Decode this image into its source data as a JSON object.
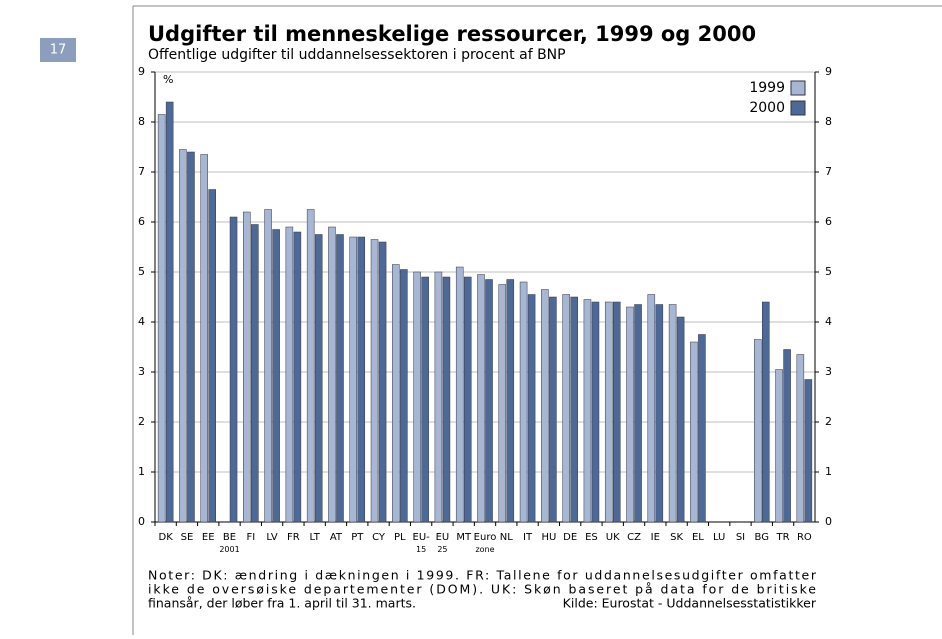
{
  "page_number": "17",
  "chart_data": {
    "type": "bar",
    "title": "Udgifter til menneskelige ressourcer, 1999 og 2000",
    "subtitle": "Offentlige udgifter til uddannelsessektoren i procent af BNP",
    "y_unit": "%",
    "categories": [
      "DK",
      "SE",
      "EE",
      "BE 2001",
      "FI",
      "LV",
      "FR",
      "LT",
      "AT",
      "PT",
      "CY",
      "PL",
      "EU- 15",
      "EU 25",
      "MT",
      "Euro zone",
      "NL",
      "IT",
      "HU",
      "DE",
      "ES",
      "UK",
      "CZ",
      "IE",
      "SK",
      "EL",
      "LU",
      "SI",
      "BG",
      "TR",
      "RO"
    ],
    "series": [
      {
        "name": "1999",
        "color": "#a7b7d3",
        "values": [
          8.15,
          7.45,
          7.35,
          null,
          6.2,
          6.25,
          5.9,
          6.25,
          5.9,
          5.7,
          5.65,
          5.15,
          5.0,
          5.0,
          5.1,
          4.95,
          4.75,
          4.8,
          4.65,
          4.55,
          4.45,
          4.4,
          4.3,
          4.55,
          4.35,
          3.6,
          null,
          null,
          3.65,
          3.05,
          3.35
        ]
      },
      {
        "name": "2000",
        "color": "#4f6997",
        "values": [
          8.4,
          7.4,
          6.65,
          6.1,
          5.95,
          5.85,
          5.8,
          5.75,
          5.75,
          5.7,
          5.6,
          5.05,
          4.9,
          4.9,
          4.9,
          4.85,
          4.85,
          4.55,
          4.5,
          4.5,
          4.4,
          4.4,
          4.35,
          4.35,
          4.1,
          3.75,
          null,
          null,
          4.4,
          3.45,
          2.85
        ]
      }
    ],
    "ylim": [
      0,
      9
    ],
    "yticks": [
      0,
      1,
      2,
      3,
      4,
      5,
      6,
      7,
      8,
      9
    ],
    "y2ticks": [
      0,
      1,
      2,
      3,
      4,
      5,
      6,
      7,
      8,
      9
    ],
    "grid": true,
    "legend": "top-right",
    "notes": [
      "Noter: DK: ændring i dækningen i 1999. FR: Tallene for uddannelsesudgifter omfatter",
      "ikke de oversøiske departementer (DOM). UK: Skøn baseret på data for de britiske",
      "finansår, der løber fra 1. april til 31. marts."
    ],
    "source": "Kilde: Eurostat - Uddannelsesstatistikker"
  }
}
